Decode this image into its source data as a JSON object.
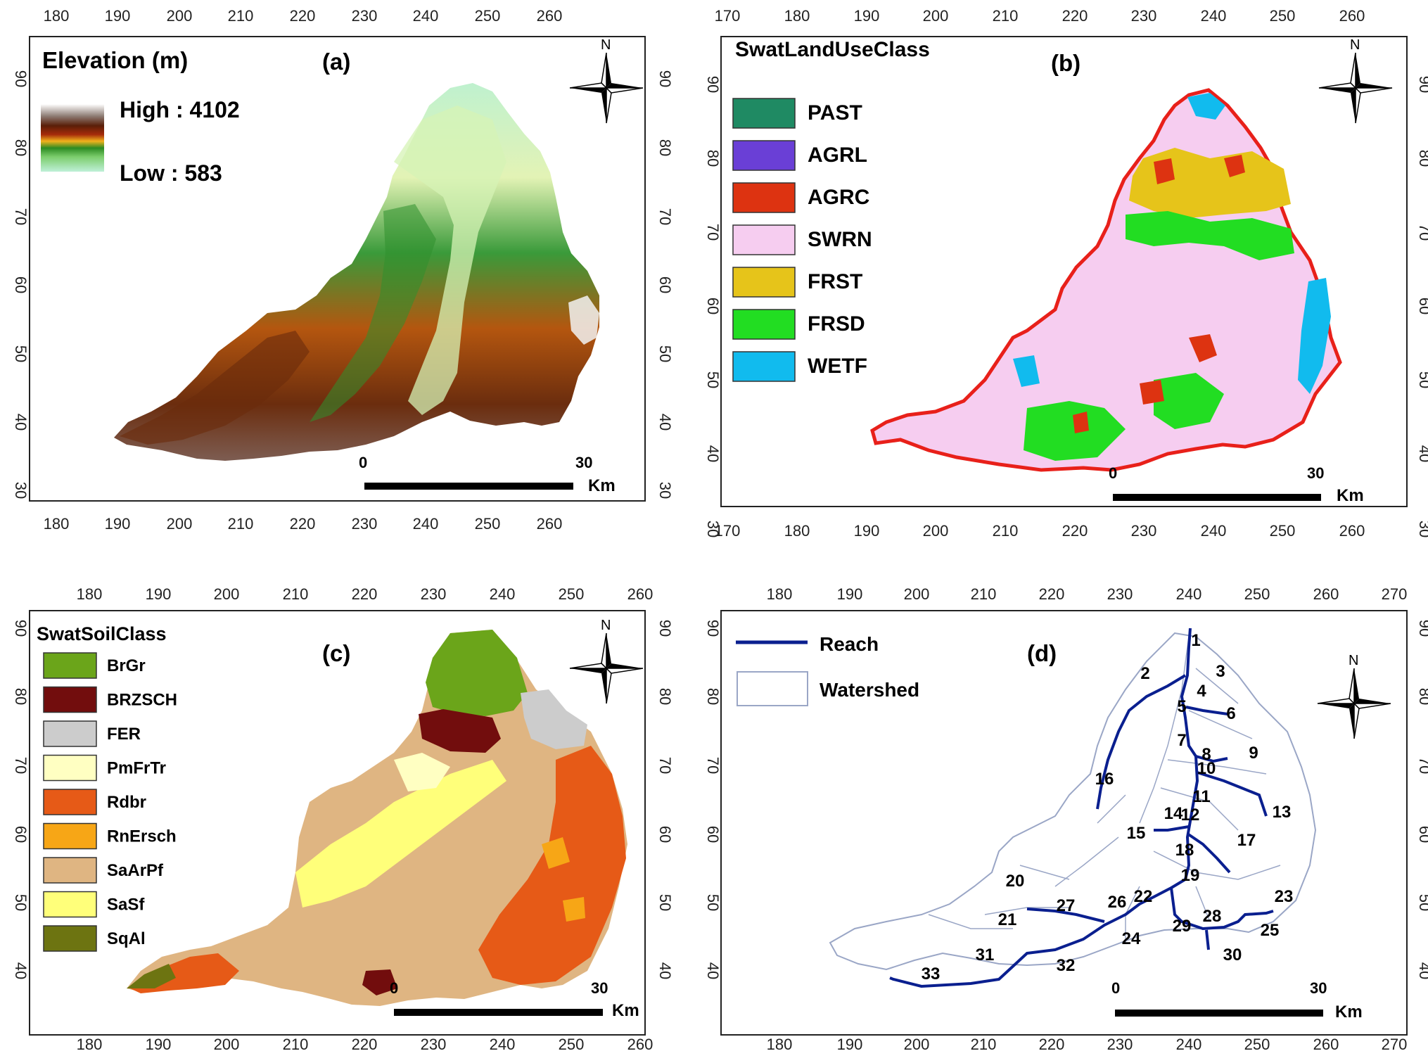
{
  "panel_a": {
    "letter": "(a)",
    "legend_title": "Elevation (m)",
    "high_label": "High : 4102",
    "low_label": "Low : 583",
    "x_ticks": [
      "180",
      "190",
      "200",
      "210",
      "220",
      "230",
      "240",
      "250",
      "260"
    ],
    "y_ticks": [
      "90",
      "80",
      "70",
      "60",
      "50",
      "40",
      "30"
    ],
    "scale_start": "0",
    "scale_end": "30",
    "scale_unit": "Km",
    "north": "N"
  },
  "panel_b": {
    "letter": "(b)",
    "legend_title": "SwatLandUseClass",
    "classes": [
      {
        "label": "PAST",
        "color": "#1f8a63"
      },
      {
        "label": "AGRL",
        "color": "#6a3fd6"
      },
      {
        "label": "AGRC",
        "color": "#dd3311"
      },
      {
        "label": "SWRN",
        "color": "#f6cdf0"
      },
      {
        "label": "FRST",
        "color": "#e6c41a"
      },
      {
        "label": "FRSD",
        "color": "#22dd22"
      },
      {
        "label": "WETF",
        "color": "#11bbee"
      }
    ],
    "x_ticks": [
      "170",
      "180",
      "190",
      "200",
      "210",
      "220",
      "230",
      "240",
      "250",
      "260"
    ],
    "y_ticks": [
      "90",
      "80",
      "70",
      "60",
      "50",
      "40",
      "30"
    ],
    "scale_start": "0",
    "scale_end": "30",
    "scale_unit": "Km",
    "north": "N"
  },
  "panel_c": {
    "letter": "(c)",
    "legend_title": "SwatSoilClass",
    "classes": [
      {
        "label": "BrGr",
        "color": "#6ba51a"
      },
      {
        "label": "BRZSCH",
        "color": "#720d0d"
      },
      {
        "label": "FER",
        "color": "#cccccc"
      },
      {
        "label": "PmFrTr",
        "color": "#ffffc2"
      },
      {
        "label": "Rdbr",
        "color": "#e65a17"
      },
      {
        "label": "RnErsch",
        "color": "#f7a616"
      },
      {
        "label": "SaArPf",
        "color": "#dfb582"
      },
      {
        "label": "SaSf",
        "color": "#ffff7a"
      },
      {
        "label": "SqAl",
        "color": "#6d7411"
      }
    ],
    "x_ticks": [
      "180",
      "190",
      "200",
      "210",
      "220",
      "230",
      "240",
      "250",
      "260"
    ],
    "y_ticks": [
      "90",
      "80",
      "70",
      "60",
      "50",
      "40"
    ],
    "scale_start": "0",
    "scale_end": "30",
    "scale_unit": "Km",
    "north": "N"
  },
  "panel_d": {
    "letter": "(d)",
    "legend_reach": "Reach",
    "legend_watershed": "Watershed",
    "subbasins": [
      "1",
      "2",
      "3",
      "4",
      "5",
      "6",
      "7",
      "8",
      "9",
      "10",
      "11",
      "12",
      "13",
      "14",
      "15",
      "16",
      "17",
      "18",
      "19",
      "20",
      "21",
      "22",
      "23",
      "24",
      "25",
      "26",
      "27",
      "28",
      "29",
      "30",
      "31",
      "32",
      "33"
    ],
    "x_ticks": [
      "180",
      "190",
      "200",
      "210",
      "220",
      "230",
      "240",
      "250",
      "260",
      "270"
    ],
    "y_ticks": [
      "90",
      "80",
      "70",
      "60",
      "50",
      "40"
    ],
    "scale_start": "0",
    "scale_end": "30",
    "scale_unit": "Km",
    "north": "N",
    "reach_color": "#0a1f8f"
  }
}
